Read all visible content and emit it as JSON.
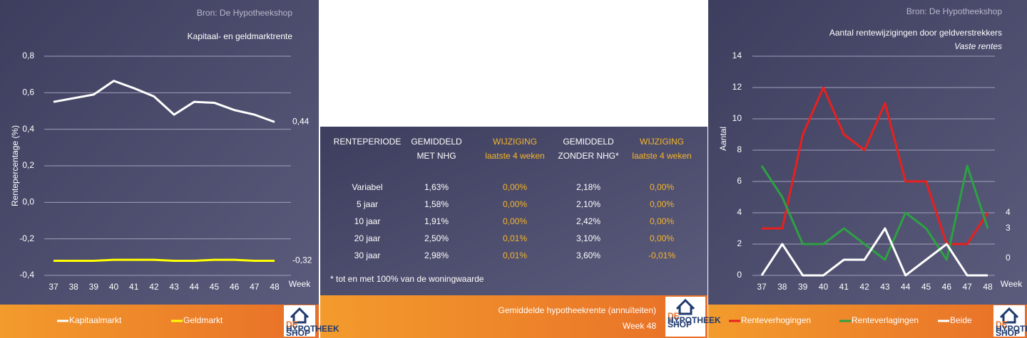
{
  "chart_data": [
    {
      "type": "line",
      "source": "Bron: De Hypotheekshop",
      "title": "Kapitaal- en geldmarktrente",
      "y_label": "Rentepercentage (%)",
      "x_label": "Week",
      "categories": [
        "37",
        "38",
        "39",
        "40",
        "41",
        "42",
        "43",
        "44",
        "45",
        "46",
        "47",
        "48"
      ],
      "series": [
        {
          "name": "Kapitaalmarkt",
          "color": "#ffffff",
          "values": [
            0.55,
            0.57,
            0.59,
            0.665,
            0.625,
            0.58,
            0.48,
            0.55,
            0.545,
            0.505,
            0.48,
            0.44
          ],
          "value_labels": [
            null,
            null,
            null,
            null,
            null,
            null,
            null,
            null,
            null,
            null,
            null,
            "0,44"
          ]
        },
        {
          "name": "Geldmarkt",
          "color": "#ffff00",
          "values": [
            -0.32,
            -0.32,
            -0.32,
            -0.315,
            -0.315,
            -0.315,
            -0.32,
            -0.32,
            -0.315,
            -0.315,
            -0.32,
            -0.32
          ],
          "value_labels": [
            null,
            null,
            null,
            null,
            null,
            null,
            null,
            null,
            null,
            null,
            null,
            "-0,32"
          ]
        }
      ],
      "ylim": [
        -0.4,
        0.8
      ],
      "yticks": [
        {
          "value": -0.4,
          "label": "-0,4"
        },
        {
          "value": -0.2,
          "label": "-0,2"
        },
        {
          "value": 0,
          "label": "0,0"
        },
        {
          "value": 0.2,
          "label": "0,2"
        },
        {
          "value": 0.4,
          "label": "0,4"
        },
        {
          "value": 0.6,
          "label": "0,6"
        },
        {
          "value": 0.8,
          "label": "0,8"
        }
      ],
      "grid": true,
      "end_labels": true
    },
    {
      "type": "line",
      "source": "Bron: De Hypotheekshop",
      "title": "Aantal rentewijzigingen door geldverstrekkers",
      "subtitle": "Vaste rentes",
      "y_label": "Aantal",
      "x_label": "Week",
      "categories": [
        "37",
        "38",
        "39",
        "40",
        "41",
        "42",
        "43",
        "44",
        "45",
        "46",
        "47",
        "48"
      ],
      "series": [
        {
          "name": "Renteverhogingen",
          "color": "#e8201e",
          "values": [
            3,
            3,
            9,
            12,
            9,
            8,
            11,
            6,
            6,
            2,
            2,
            4
          ]
        },
        {
          "name": "Renteverlagingen",
          "color": "#2ea043",
          "values": [
            7,
            5,
            2,
            2,
            3,
            2,
            1,
            4,
            3,
            1,
            7,
            3
          ]
        },
        {
          "name": "Beide",
          "color": "#ffffff",
          "values": [
            0,
            2,
            0,
            0,
            1,
            1,
            3,
            0,
            1,
            2,
            0,
            0
          ]
        }
      ],
      "ylim": [
        0,
        14
      ],
      "yticks": [
        0,
        2,
        4,
        6,
        8,
        10,
        12,
        14
      ],
      "grid": true,
      "end_labels": true
    }
  ],
  "table": {
    "header": [
      [
        "RENTEPERIODE"
      ],
      [
        "GEMIDDELD",
        "MET NHG"
      ],
      [
        "WIJZIGING",
        "laatste 4 weken"
      ],
      [
        "GEMIDDELD",
        "ZONDER NHG*"
      ],
      [
        "WIJZIGING",
        "laatste 4 weken"
      ]
    ],
    "rows": [
      [
        "Variabel",
        "1,63%",
        "0,00%",
        "2,18%",
        "0,00%"
      ],
      [
        "5 jaar",
        "1,58%",
        "0,00%",
        "2,10%",
        "0,00%"
      ],
      [
        "10 jaar",
        "1,91%",
        "0,00%",
        "2,42%",
        "0,00%"
      ],
      [
        "20 jaar",
        "2,50%",
        "0,01%",
        "3,10%",
        "0,00%"
      ],
      [
        "30 jaar",
        "2,98%",
        "0,01%",
        "3,60%",
        "-0,01%"
      ]
    ],
    "footnote": "* tot en met 100% van de woningwaarde"
  },
  "footer": {
    "title": "Gemiddelde hypotheekrente (annuïteiten)",
    "week": "Week 48"
  },
  "logo": [
    "DE",
    "HYPOTHEEK",
    "SHOP"
  ]
}
